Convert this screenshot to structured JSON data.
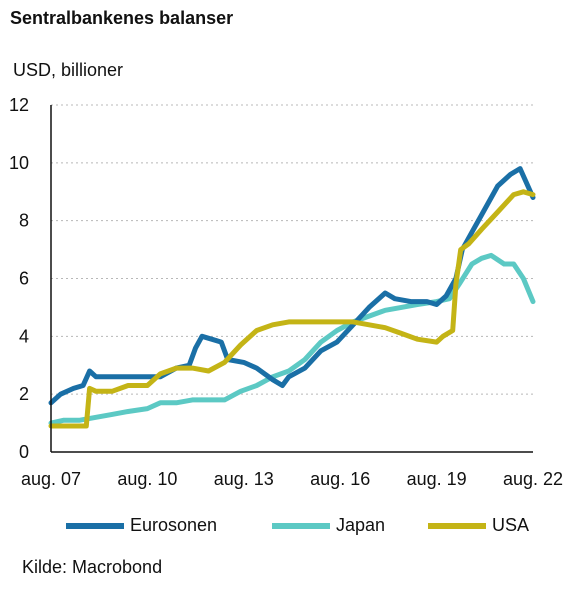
{
  "chart_data": {
    "type": "line",
    "title": "Sentralbankenes balanser",
    "ylabel": "USD, billioner",
    "source": "Kilde: Macrobond",
    "ylim": [
      0,
      12
    ],
    "yticks": [
      0,
      2,
      4,
      6,
      8,
      10,
      12
    ],
    "xlim": [
      2007.6,
      2022.6
    ],
    "xticks": [
      {
        "x": 2007.6,
        "label": "aug. 07"
      },
      {
        "x": 2010.6,
        "label": "aug. 10"
      },
      {
        "x": 2013.6,
        "label": "aug. 13"
      },
      {
        "x": 2016.6,
        "label": "aug. 16"
      },
      {
        "x": 2019.6,
        "label": "aug. 19"
      },
      {
        "x": 2022.6,
        "label": "aug. 22"
      }
    ],
    "grid": true,
    "legend_position": "bottom",
    "series": [
      {
        "name": "Eurosonen",
        "color": "#1a6fa6",
        "points": [
          [
            2007.6,
            1.7
          ],
          [
            2007.9,
            2.0
          ],
          [
            2008.3,
            2.2
          ],
          [
            2008.6,
            2.3
          ],
          [
            2008.8,
            2.8
          ],
          [
            2009.0,
            2.6
          ],
          [
            2009.5,
            2.6
          ],
          [
            2010.0,
            2.6
          ],
          [
            2010.6,
            2.6
          ],
          [
            2011.0,
            2.6
          ],
          [
            2011.5,
            2.9
          ],
          [
            2011.9,
            3.0
          ],
          [
            2012.1,
            3.6
          ],
          [
            2012.3,
            4.0
          ],
          [
            2012.6,
            3.9
          ],
          [
            2012.9,
            3.8
          ],
          [
            2013.1,
            3.2
          ],
          [
            2013.6,
            3.1
          ],
          [
            2014.0,
            2.9
          ],
          [
            2014.5,
            2.5
          ],
          [
            2014.8,
            2.3
          ],
          [
            2015.0,
            2.6
          ],
          [
            2015.5,
            2.9
          ],
          [
            2016.0,
            3.5
          ],
          [
            2016.5,
            3.8
          ],
          [
            2017.0,
            4.4
          ],
          [
            2017.5,
            5.0
          ],
          [
            2018.0,
            5.5
          ],
          [
            2018.3,
            5.3
          ],
          [
            2018.8,
            5.2
          ],
          [
            2019.3,
            5.2
          ],
          [
            2019.6,
            5.1
          ],
          [
            2019.9,
            5.4
          ],
          [
            2020.2,
            6.0
          ],
          [
            2020.4,
            7.0
          ],
          [
            2020.7,
            7.6
          ],
          [
            2021.0,
            8.2
          ],
          [
            2021.5,
            9.2
          ],
          [
            2021.9,
            9.6
          ],
          [
            2022.2,
            9.8
          ],
          [
            2022.4,
            9.3
          ],
          [
            2022.6,
            8.8
          ]
        ]
      },
      {
        "name": "Japan",
        "color": "#5cc9c4",
        "points": [
          [
            2007.6,
            1.0
          ],
          [
            2008.0,
            1.1
          ],
          [
            2008.5,
            1.1
          ],
          [
            2009.0,
            1.2
          ],
          [
            2009.5,
            1.3
          ],
          [
            2010.0,
            1.4
          ],
          [
            2010.6,
            1.5
          ],
          [
            2011.0,
            1.7
          ],
          [
            2011.5,
            1.7
          ],
          [
            2012.0,
            1.8
          ],
          [
            2012.5,
            1.8
          ],
          [
            2013.0,
            1.8
          ],
          [
            2013.5,
            2.1
          ],
          [
            2014.0,
            2.3
          ],
          [
            2014.5,
            2.6
          ],
          [
            2015.0,
            2.8
          ],
          [
            2015.5,
            3.2
          ],
          [
            2016.0,
            3.8
          ],
          [
            2016.5,
            4.2
          ],
          [
            2017.0,
            4.5
          ],
          [
            2017.5,
            4.7
          ],
          [
            2018.0,
            4.9
          ],
          [
            2018.5,
            5.0
          ],
          [
            2019.0,
            5.1
          ],
          [
            2019.6,
            5.2
          ],
          [
            2020.0,
            5.3
          ],
          [
            2020.3,
            5.8
          ],
          [
            2020.7,
            6.5
          ],
          [
            2021.0,
            6.7
          ],
          [
            2021.3,
            6.8
          ],
          [
            2021.7,
            6.5
          ],
          [
            2022.0,
            6.5
          ],
          [
            2022.3,
            6.0
          ],
          [
            2022.6,
            5.2
          ]
        ]
      },
      {
        "name": "USA",
        "color": "#c4b416",
        "points": [
          [
            2007.6,
            0.9
          ],
          [
            2008.2,
            0.9
          ],
          [
            2008.7,
            0.9
          ],
          [
            2008.8,
            2.2
          ],
          [
            2009.0,
            2.1
          ],
          [
            2009.5,
            2.1
          ],
          [
            2010.0,
            2.3
          ],
          [
            2010.6,
            2.3
          ],
          [
            2011.0,
            2.7
          ],
          [
            2011.5,
            2.9
          ],
          [
            2012.0,
            2.9
          ],
          [
            2012.5,
            2.8
          ],
          [
            2013.0,
            3.1
          ],
          [
            2013.5,
            3.7
          ],
          [
            2014.0,
            4.2
          ],
          [
            2014.5,
            4.4
          ],
          [
            2015.0,
            4.5
          ],
          [
            2016.0,
            4.5
          ],
          [
            2017.0,
            4.5
          ],
          [
            2017.5,
            4.4
          ],
          [
            2018.0,
            4.3
          ],
          [
            2018.5,
            4.1
          ],
          [
            2019.0,
            3.9
          ],
          [
            2019.6,
            3.8
          ],
          [
            2019.8,
            4.0
          ],
          [
            2020.1,
            4.2
          ],
          [
            2020.2,
            5.8
          ],
          [
            2020.35,
            7.0
          ],
          [
            2020.6,
            7.2
          ],
          [
            2021.0,
            7.7
          ],
          [
            2021.5,
            8.3
          ],
          [
            2022.0,
            8.9
          ],
          [
            2022.3,
            9.0
          ],
          [
            2022.6,
            8.9
          ]
        ]
      }
    ]
  }
}
